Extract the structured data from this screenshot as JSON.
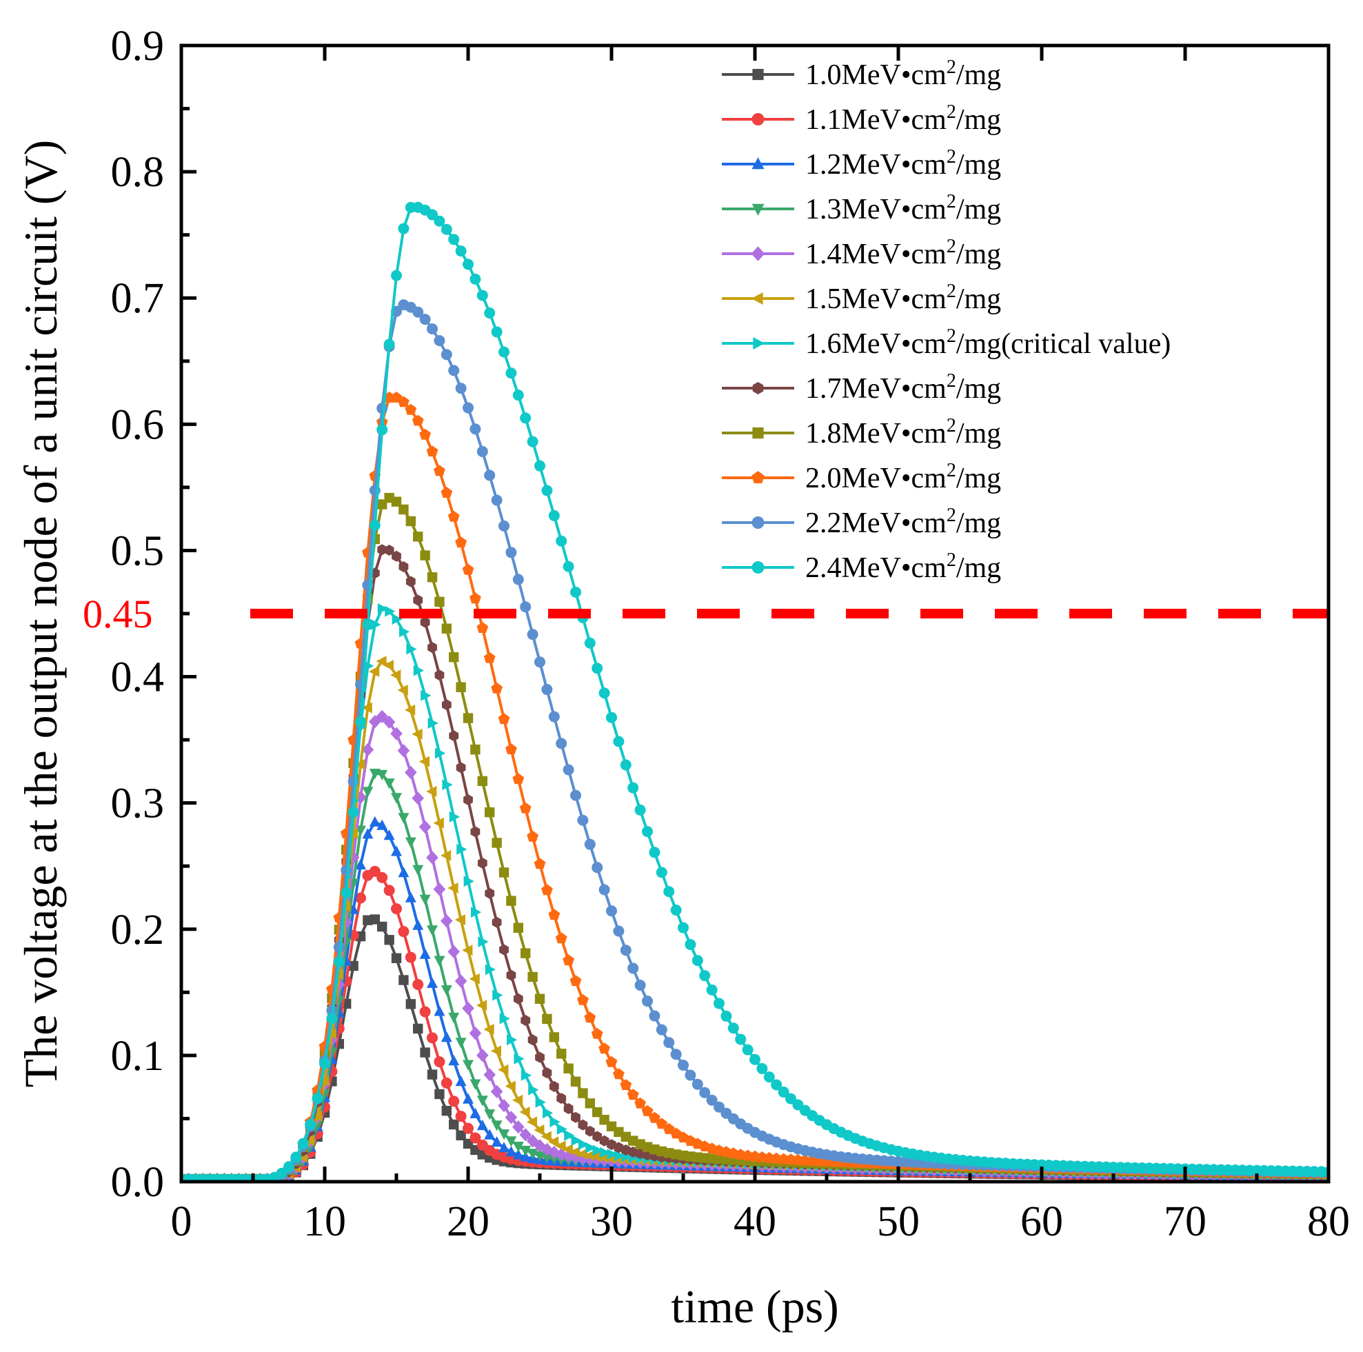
{
  "chart_data": {
    "type": "line",
    "title": "",
    "xlabel": "time (ps)",
    "ylabel": "The voltage at the output node of a unit circuit (V)",
    "xlim": [
      0,
      80
    ],
    "ylim": [
      0,
      0.9
    ],
    "xticks": [
      "0",
      "10",
      "20",
      "30",
      "40",
      "50",
      "60",
      "70",
      "80"
    ],
    "yticks": [
      "0.0",
      "0.1",
      "0.2",
      "0.3",
      "0.4",
      "0.5",
      "0.6",
      "0.7",
      "0.8",
      "0.9"
    ],
    "grid": false,
    "legend_position": "top-right",
    "reference_line": {
      "y": 0.45,
      "label": "0.45",
      "color": "#ff0000",
      "style": "dashed"
    },
    "series": [
      {
        "name": "1.0MeV•cm",
        "sup": "2",
        "unit": "/mg",
        "peak": 0.192,
        "peak_time": 13.2,
        "rise_width": 1.9,
        "fall_width": 3.0,
        "tail_amp": 0.022,
        "tail_decay": 40,
        "color": "#4d4d4d",
        "marker": "square"
      },
      {
        "name": "1.1MeV•cm",
        "sup": "2",
        "unit": "/mg",
        "peak": 0.228,
        "peak_time": 13.3,
        "rise_width": 1.9,
        "fall_width": 3.2,
        "tail_amp": 0.024,
        "tail_decay": 40,
        "color": "#f04040",
        "marker": "circle"
      },
      {
        "name": "1.2MeV•cm",
        "sup": "2",
        "unit": "/mg",
        "peak": 0.265,
        "peak_time": 13.5,
        "rise_width": 2.0,
        "fall_width": 3.5,
        "tail_amp": 0.026,
        "tail_decay": 40,
        "color": "#1e6be6",
        "marker": "triangle-up"
      },
      {
        "name": "1.3MeV•cm",
        "sup": "2",
        "unit": "/mg",
        "peak": 0.303,
        "peak_time": 13.6,
        "rise_width": 2.0,
        "fall_width": 3.8,
        "tail_amp": 0.028,
        "tail_decay": 40,
        "color": "#3aa86a",
        "marker": "triangle-down"
      },
      {
        "name": "1.4MeV•cm",
        "sup": "2",
        "unit": "/mg",
        "peak": 0.346,
        "peak_time": 13.8,
        "rise_width": 2.1,
        "fall_width": 4.2,
        "tail_amp": 0.03,
        "tail_decay": 40,
        "color": "#b070e0",
        "marker": "diamond"
      },
      {
        "name": "1.5MeV•cm",
        "sup": "2",
        "unit": "/mg",
        "peak": 0.388,
        "peak_time": 13.9,
        "rise_width": 2.1,
        "fall_width": 4.6,
        "tail_amp": 0.032,
        "tail_decay": 40,
        "color": "#c8a010",
        "marker": "triangle-left"
      },
      {
        "name": "1.6MeV•cm",
        "sup": "2",
        "unit": "/mg(critical value)",
        "peak": 0.428,
        "peak_time": 14.0,
        "rise_width": 2.2,
        "fall_width": 5.1,
        "tail_amp": 0.034,
        "tail_decay": 40,
        "color": "#10c8c8",
        "marker": "triangle-right",
        "label_color": "#ff0000"
      },
      {
        "name": "1.7MeV•cm",
        "sup": "2",
        "unit": "/mg",
        "peak": 0.474,
        "peak_time": 14.1,
        "rise_width": 2.2,
        "fall_width": 5.7,
        "tail_amp": 0.036,
        "tail_decay": 40,
        "color": "#7a4545",
        "marker": "hexagon"
      },
      {
        "name": "1.8MeV•cm",
        "sup": "2",
        "unit": "/mg",
        "peak": 0.513,
        "peak_time": 14.3,
        "rise_width": 2.3,
        "fall_width": 6.3,
        "tail_amp": 0.038,
        "tail_decay": 40,
        "color": "#8c8c10",
        "marker": "square"
      },
      {
        "name": "2.0MeV•cm",
        "sup": "2",
        "unit": "/mg",
        "peak": 0.59,
        "peak_time": 14.6,
        "rise_width": 2.4,
        "fall_width": 7.5,
        "tail_amp": 0.042,
        "tail_decay": 40,
        "color": "#ff6a10",
        "marker": "pentagon"
      },
      {
        "name": "2.2MeV•cm",
        "sup": "2",
        "unit": "/mg",
        "peak": 0.66,
        "peak_time": 15.3,
        "rise_width": 2.6,
        "fall_width": 9.3,
        "tail_amp": 0.046,
        "tail_decay": 40,
        "color": "#5b8fd0",
        "marker": "circle"
      },
      {
        "name": "2.4MeV•cm",
        "sup": "2",
        "unit": "/mg",
        "peak": 0.735,
        "peak_time": 16.1,
        "rise_width": 2.9,
        "fall_width": 11.2,
        "tail_amp": 0.05,
        "tail_decay": 40,
        "color": "#10c8c8",
        "marker": "circle"
      }
    ]
  }
}
